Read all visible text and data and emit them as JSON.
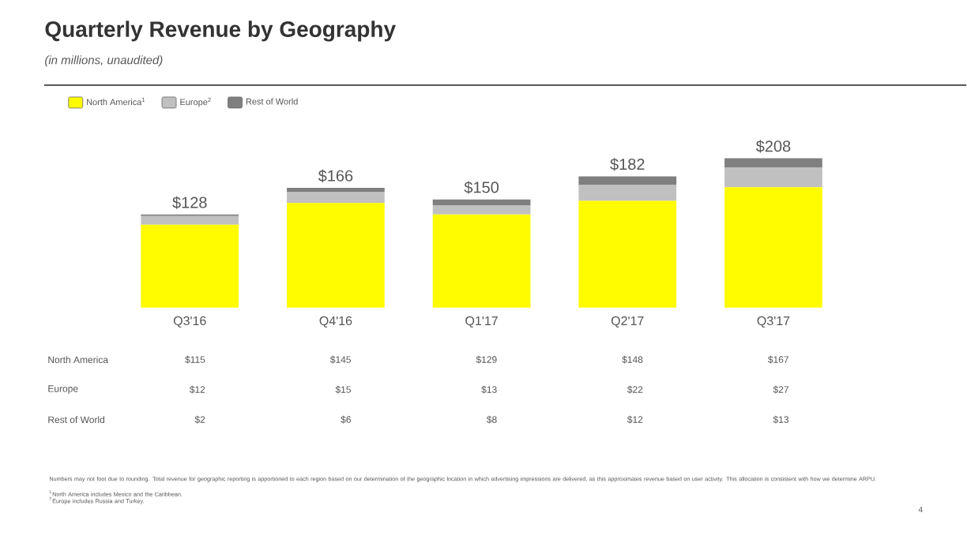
{
  "chart_data": {
    "type": "bar",
    "stacked": true,
    "title": "Quarterly Revenue by Geography",
    "subtitle": "(in millions, unaudited)",
    "categories": [
      "Q3'16",
      "Q4'16",
      "Q1'17",
      "Q2'17",
      "Q3'17"
    ],
    "ylim": [
      0,
      210
    ],
    "series": [
      {
        "name": "North America$^{1}$",
        "color": "#fffc00",
        "values": [
          115,
          145,
          129,
          148,
          167
        ],
        "value_labels": [
          "$115",
          "$145",
          "$129",
          "$148",
          "$167"
        ]
      },
      {
        "name": "Europe$^{2}$",
        "color": "#c0c0c0",
        "values": [
          12,
          15,
          13,
          22,
          27
        ],
        "value_labels": [
          "$12",
          "$15",
          "$13",
          "$22",
          "$27"
        ]
      },
      {
        "name": "Rest of World",
        "color": "#7f7f7f",
        "values": [
          2,
          6,
          8,
          12,
          13
        ],
        "value_labels": [
          "$2",
          "$6",
          "$8",
          "$12",
          "$13"
        ]
      }
    ],
    "totals": [
      "$128",
      "$166",
      "$150",
      "$182",
      "$208"
    ],
    "legend": "top left",
    "annotations": [
      "North America",
      "Europe",
      "Rest of World",
      "Numbers may not foot due to rounding.  Total revenue for geographic reporting is apportioned to each region based on our determination of the geographic location in which advertising impressions are delivered, as this approximates revenue based on user activity.  This allocation is consistent with how we determine ARPU.",
      "$^{1}$North America includes Mexico and the Caribbean.",
      "$^{2}$Europe includes Russia and Turkey.",
      "4"
    ]
  }
}
